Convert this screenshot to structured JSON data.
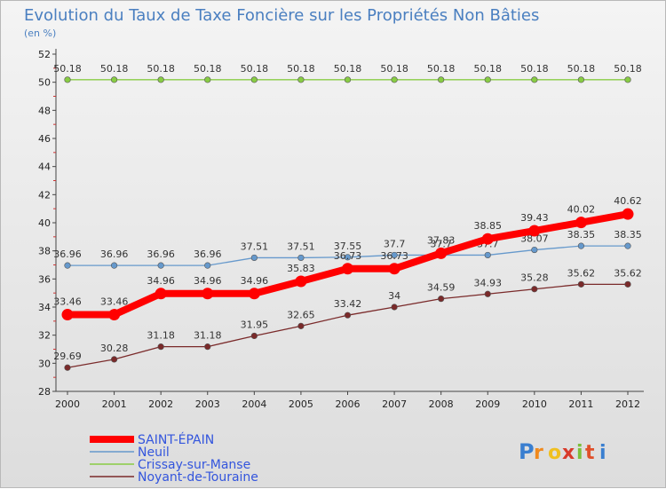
{
  "chart_data": {
    "type": "line",
    "title": "Evolution du Taux de Taxe Foncière sur les Propriétés Non Bâties",
    "unit_label": "(en %)",
    "x": [
      "2000",
      "2001",
      "2002",
      "2003",
      "2004",
      "2005",
      "2006",
      "2007",
      "2008",
      "2009",
      "2010",
      "2011",
      "2012"
    ],
    "ylim": [
      28,
      52
    ],
    "yticks": [
      28,
      30,
      32,
      34,
      36,
      38,
      40,
      42,
      44,
      46,
      48,
      50,
      52
    ],
    "grid": false,
    "legend_position": "bottom-left",
    "series": [
      {
        "name": "SAINT-ÉPAIN",
        "color": "#ff0000",
        "values": [
          33.46,
          33.46,
          34.96,
          34.96,
          34.96,
          35.83,
          36.73,
          36.73,
          37.83,
          38.85,
          39.43,
          40.02,
          40.62
        ],
        "labels": [
          "33.46",
          "33.46",
          "34.96",
          "34.96",
          "34.96",
          "35.83",
          "36.73",
          "36.73",
          "37.83",
          "38.85",
          "39.43",
          "40.02",
          "40.62"
        ]
      },
      {
        "name": "Neuil",
        "color": "#6699cc",
        "values": [
          36.96,
          36.96,
          36.96,
          36.96,
          37.51,
          37.51,
          37.55,
          37.7,
          37.7,
          37.7,
          38.07,
          38.35,
          38.35
        ],
        "labels": [
          "36.96",
          "36.96",
          "36.96",
          "36.96",
          "37.51",
          "37.51",
          "37.55",
          "37.7",
          "37.7",
          "37.7",
          "38.07",
          "38.35",
          "38.35"
        ]
      },
      {
        "name": "Crissay-sur-Manse",
        "color": "#88cc44",
        "values": [
          50.18,
          50.18,
          50.18,
          50.18,
          50.18,
          50.18,
          50.18,
          50.18,
          50.18,
          50.18,
          50.18,
          50.18,
          50.18
        ],
        "labels": [
          "50.18",
          "50.18",
          "50.18",
          "50.18",
          "50.18",
          "50.18",
          "50.18",
          "50.18",
          "50.18",
          "50.18",
          "50.18",
          "50.18",
          "50.18"
        ]
      },
      {
        "name": "Noyant-de-Touraine",
        "color": "#7a2a2a",
        "values": [
          29.69,
          30.28,
          31.18,
          31.18,
          31.95,
          32.65,
          33.42,
          34,
          34.59,
          34.93,
          35.28,
          35.62,
          35.62
        ],
        "labels": [
          "29.69",
          "30.28",
          "31.18",
          "31.18",
          "31.95",
          "32.65",
          "33.42",
          "34",
          "34.59",
          "34.93",
          "35.28",
          "35.62",
          "35.62"
        ]
      }
    ]
  },
  "watermark": {
    "letters": [
      "P",
      "r",
      "o",
      "x",
      "i",
      "t",
      "i"
    ],
    "colors": [
      "#3a7fd0",
      "#f08a1e",
      "#f0c020",
      "#d83a2a",
      "#7cbf3a",
      "#e0502a",
      "#3a7fd0"
    ]
  }
}
